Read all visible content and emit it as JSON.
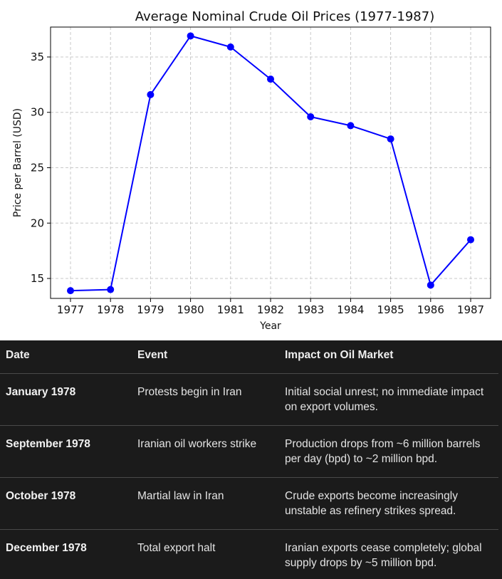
{
  "chart_data": {
    "type": "line",
    "title": "Average Nominal Crude Oil Prices (1977-1987)",
    "xlabel": "Year",
    "ylabel": "Price per Barrel (USD)",
    "x": [
      "1977",
      "1978",
      "1979",
      "1980",
      "1981",
      "1982",
      "1983",
      "1984",
      "1985",
      "1986",
      "1987"
    ],
    "series": [
      {
        "values": [
          13.9,
          14.0,
          31.6,
          36.9,
          35.9,
          33.0,
          29.6,
          28.8,
          27.6,
          14.4,
          18.5
        ]
      }
    ],
    "yticks": [
      15,
      20,
      25,
      30,
      35
    ],
    "ylim": [
      13.2,
      37.7
    ],
    "grid": true,
    "line_color": "#0000ff"
  },
  "table": {
    "headers": [
      "Date",
      "Event",
      "Impact on Oil Market"
    ],
    "rows": [
      {
        "date": "January 1978",
        "event": "Protests begin in Iran",
        "impact": "Initial social unrest; no immediate impact on export volumes."
      },
      {
        "date": "September 1978",
        "event": "Iranian oil workers strike",
        "impact": "Production drops from ~6 million barrels per day (bpd) to ~2 million bpd."
      },
      {
        "date": "October 1978",
        "event": "Martial law in Iran",
        "impact": "Crude exports become increasingly unstable as refinery strikes spread."
      },
      {
        "date": "December 1978",
        "event": "Total export halt",
        "impact": "Iranian exports cease completely; global supply drops by ~5 million bpd."
      }
    ]
  }
}
